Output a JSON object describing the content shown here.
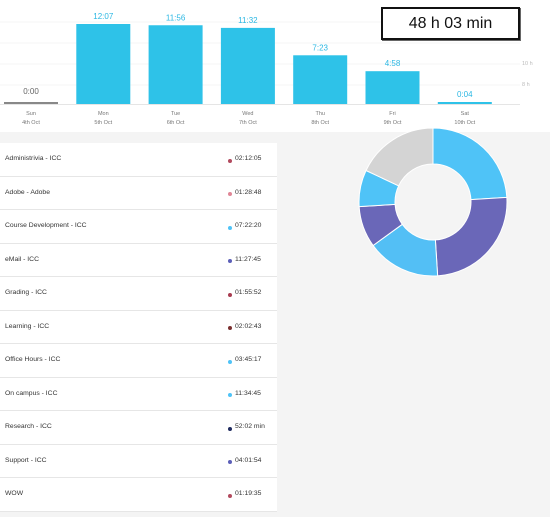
{
  "summary": {
    "total": "48 h 03 min"
  },
  "chart_data": {
    "type": "bar",
    "categories": [
      "Sun",
      "Mon",
      "Tue",
      "Wed",
      "Thu",
      "Fri",
      "Sat"
    ],
    "dates": [
      "4th Oct",
      "5th Oct",
      "6th Oct",
      "7th Oct",
      "8th Oct",
      "9th Oct",
      "10th Oct"
    ],
    "value_labels": [
      "0:00",
      "12:07",
      "11:56",
      "11:32",
      "7:23",
      "4:58",
      "0:04"
    ],
    "values_hours": [
      0,
      12.12,
      11.93,
      11.53,
      7.38,
      4.97,
      0.07
    ],
    "right_axis_labels": [
      "10 h",
      "8 h"
    ],
    "colors": {
      "bar": "#2ec2e8",
      "zero_bar": "#888888"
    }
  },
  "projects": [
    {
      "name": "Administrivia - ICC",
      "time": "02:12:05",
      "color": "#b24a5e"
    },
    {
      "name": "Adobe - Adobe",
      "time": "01:28:48",
      "color": "#e08696"
    },
    {
      "name": "Course Development - ICC",
      "time": "07:22:20",
      "color": "#4fc3f7"
    },
    {
      "name": "eMail - ICC",
      "time": "11:27:45",
      "color": "#5c5fb8"
    },
    {
      "name": "Grading - ICC",
      "time": "01:55:52",
      "color": "#a83c50"
    },
    {
      "name": "Learning - ICC",
      "time": "02:02:43",
      "color": "#7a2f2f"
    },
    {
      "name": "Office Hours - ICC",
      "time": "03:45:17",
      "color": "#4fc3f7"
    },
    {
      "name": "On campus - ICC",
      "time": "11:34:45",
      "color": "#4fc3f7"
    },
    {
      "name": "Research - ICC",
      "time": "52:02 min",
      "color": "#1f2a5e"
    },
    {
      "name": "Support - ICC",
      "time": "04:01:54",
      "color": "#5c5fb8"
    },
    {
      "name": "WOW",
      "time": "01:19:35",
      "color": "#b24a5e"
    }
  ],
  "donut": {
    "slices": [
      {
        "value": 24,
        "color": "#4fc3f7"
      },
      {
        "value": 25,
        "color": "#6a67b8"
      },
      {
        "value": 16,
        "color": "#53bff5"
      },
      {
        "value": 9,
        "color": "#6a67b8"
      },
      {
        "value": 8,
        "color": "#4fc3f7"
      },
      {
        "value": 18,
        "color": "#d4d4d4"
      }
    ]
  }
}
